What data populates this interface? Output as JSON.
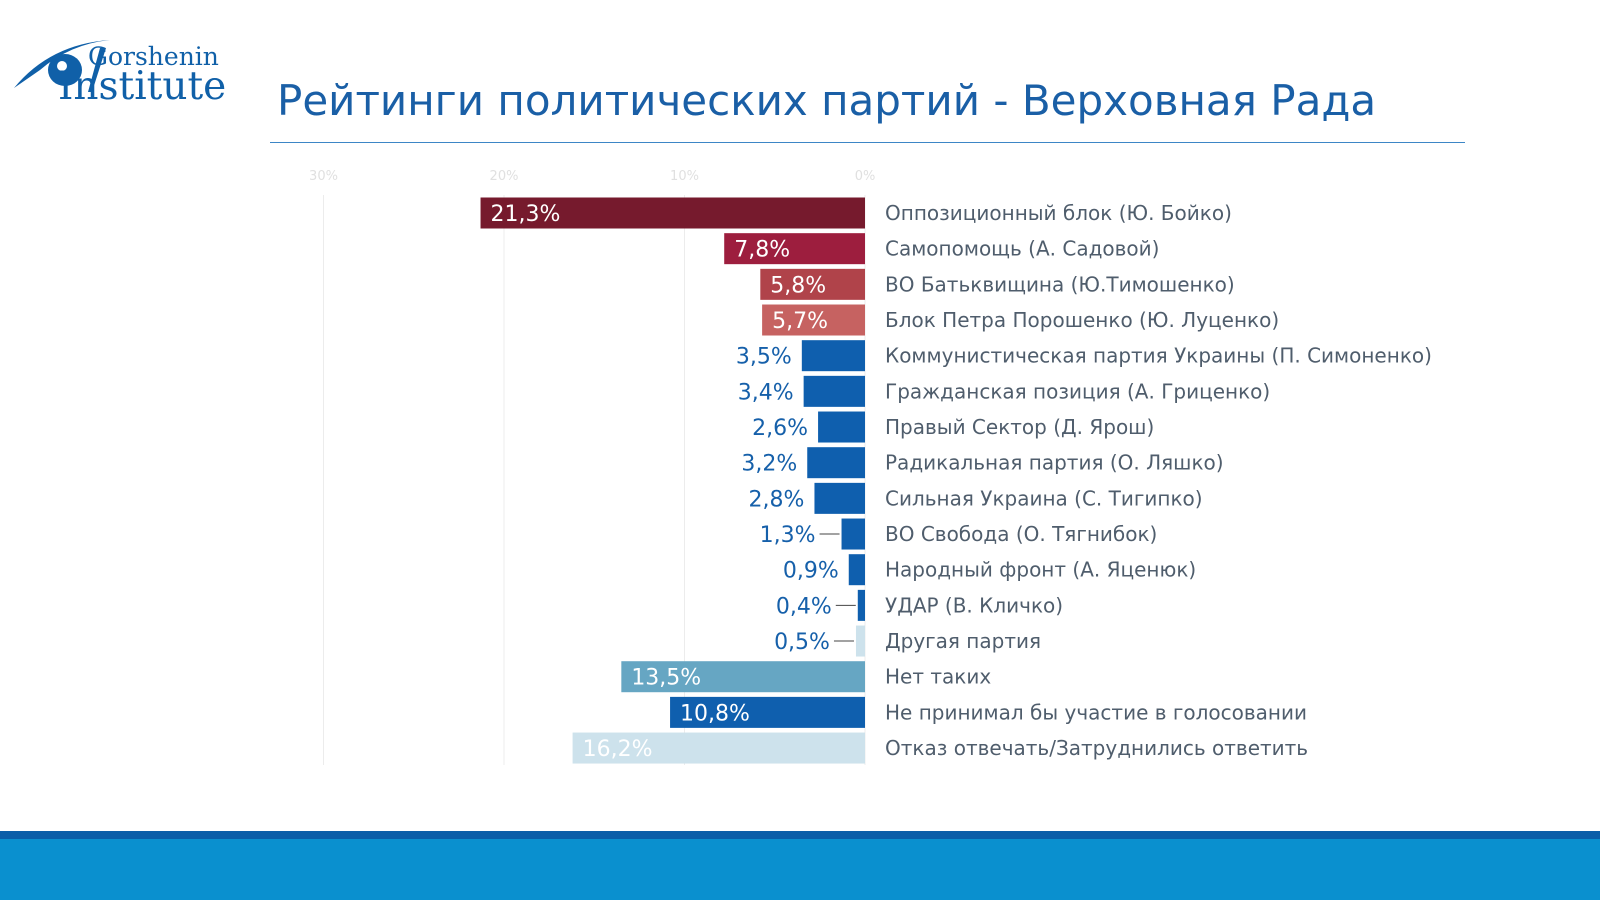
{
  "logo": {
    "line1": "Gorshenin",
    "line2": "Institute"
  },
  "header": {
    "title": "Рейтинги политических партий - Верховная Рада"
  },
  "colors": {
    "maroon": "#761a2d",
    "crimson": "#9d1e3e",
    "red": "#b0434a",
    "rose": "#c66261",
    "blue": "#0f5fae",
    "steel": "#66a6c3",
    "pale": "#cde2ec",
    "title": "#1a5fa6"
  },
  "chart_data": {
    "type": "bar",
    "orientation": "horizontal",
    "direction": "right-to-left",
    "xlim": [
      30,
      0
    ],
    "x_ticks": [
      "30%",
      "20%",
      "10%",
      "0%"
    ],
    "x_tick_values": [
      30,
      20,
      10,
      0
    ],
    "grid": true,
    "categories": [
      "Оппозиционный блок (Ю. Бойко)",
      "Самопомощь (А. Садовой)",
      "ВО Батьквищина (Ю.Тимошенко)",
      "Блок Петра Порошенко (Ю. Луценко)",
      "Коммунистическая партия Украины (П. Симоненко)",
      "Гражданская позиция (А. Гриценко)",
      "Правый Сектор (Д. Ярош)",
      "Радикальная партия (О. Ляшко)",
      "Сильная Украина (С. Тигипко)",
      "ВО Свобода (О. Тягнибок)",
      "Народный фронт (А. Яценюк)",
      "УДАР (В. Кличко)",
      "Другая партия",
      "Нет таких",
      "Не принимал  бы  участие в голосовании",
      " Отказ отвечать/Затруднились ответить"
    ],
    "values": [
      21.3,
      7.8,
      5.8,
      5.7,
      3.5,
      3.4,
      2.6,
      3.2,
      2.8,
      1.3,
      0.9,
      0.4,
      0.5,
      13.5,
      10.8,
      16.2
    ],
    "value_labels": [
      "21,3%",
      "7,8%",
      "5,8%",
      "5,7%",
      "3,5%",
      "3,4%",
      "2,6%",
      "3,2%",
      "2,8%",
      "1,3%",
      "0,9%",
      "0,4%",
      "0,5%",
      "13,5%",
      "10,8%",
      "16,2%"
    ],
    "bar_colors": [
      "#761a2d",
      "#9d1e3e",
      "#b0434a",
      "#c66261",
      "#0f5fae",
      "#0f5fae",
      "#0f5fae",
      "#0f5fae",
      "#0f5fae",
      "#0f5fae",
      "#0f5fae",
      "#0f5fae",
      "#cde2ec",
      "#66a6c3",
      "#0f5fae",
      "#cde2ec"
    ],
    "label_colors": [
      "#ffffff",
      "#ffffff",
      "#ffffff",
      "#ffffff",
      "#1660aa",
      "#1660aa",
      "#1660aa",
      "#1660aa",
      "#1660aa",
      "#1660aa",
      "#1660aa",
      "#1660aa",
      "#1660aa",
      "#ffffff",
      "#ffffff",
      "#ffffff"
    ],
    "label_inside": [
      true,
      true,
      true,
      true,
      false,
      false,
      false,
      false,
      false,
      false,
      false,
      false,
      false,
      true,
      true,
      true
    ],
    "leader_line": [
      false,
      false,
      false,
      false,
      false,
      false,
      false,
      false,
      false,
      true,
      false,
      true,
      true,
      false,
      false,
      false
    ]
  }
}
